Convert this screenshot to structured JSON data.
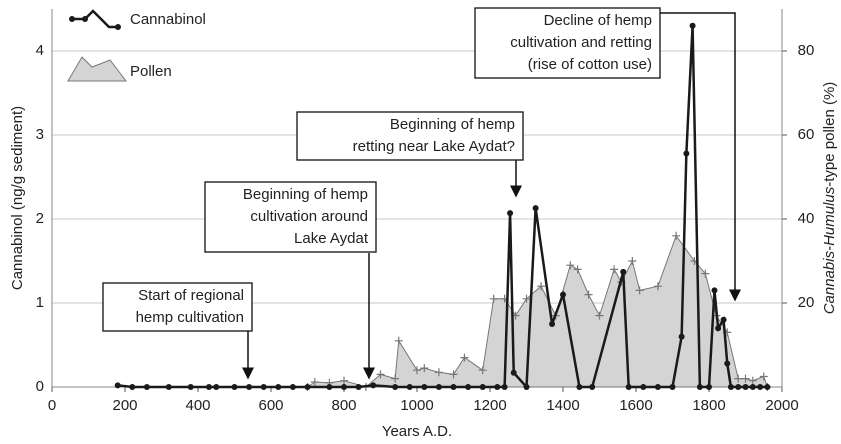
{
  "chart_data": {
    "type": "line",
    "x_label": "Years A.D.",
    "y_label": "Cannabinol (ng/g sediment)",
    "y2_label_parts": [
      "Cannabis-Humulus",
      "-type pollen (%)"
    ],
    "xlim": [
      0,
      2000
    ],
    "xticks": [
      0,
      200,
      400,
      600,
      800,
      1000,
      1200,
      1400,
      1600,
      1800,
      2000
    ],
    "ylim": [
      0,
      4.5
    ],
    "yticks": [
      0,
      1,
      2,
      3,
      4
    ],
    "y2lim": [
      0,
      90
    ],
    "y2ticks": [
      20,
      40,
      60,
      80
    ],
    "grid": true,
    "legend": "top-left",
    "series": [
      {
        "name": "Cannabinol",
        "color": "#1a1a1a",
        "x": [
          180,
          220,
          260,
          320,
          380,
          430,
          450,
          500,
          540,
          580,
          620,
          660,
          700,
          760,
          800,
          840,
          880,
          940,
          980,
          1020,
          1060,
          1100,
          1140,
          1180,
          1220,
          1240,
          1255,
          1265,
          1300,
          1325,
          1370,
          1400,
          1445,
          1480,
          1565,
          1580,
          1620,
          1660,
          1700,
          1725,
          1738,
          1755,
          1775,
          1800,
          1815,
          1825,
          1840,
          1850,
          1860,
          1880,
          1900,
          1920,
          1940,
          1960
        ],
        "values": [
          0.02,
          0,
          0,
          0,
          0,
          0,
          0,
          0,
          0,
          0,
          0,
          0,
          0,
          0,
          0,
          0,
          0.02,
          0,
          0,
          0,
          0,
          0,
          0,
          0,
          0,
          0,
          2.07,
          0.17,
          0,
          2.13,
          0.75,
          1.1,
          0,
          0,
          1.37,
          0,
          0,
          0,
          0,
          0.6,
          2.78,
          4.3,
          0,
          0,
          1.15,
          0.7,
          0.8,
          0.28,
          0,
          0,
          0,
          0,
          0,
          0
        ]
      },
      {
        "name": "Pollen",
        "color": "#d4d4d4",
        "axis": "y2",
        "type": "area",
        "x": [
          700,
          720,
          760,
          800,
          860,
          900,
          940,
          950,
          1000,
          1020,
          1060,
          1100,
          1130,
          1180,
          1210,
          1240,
          1270,
          1300,
          1340,
          1380,
          1420,
          1440,
          1470,
          1500,
          1540,
          1560,
          1590,
          1610,
          1660,
          1710,
          1760,
          1790,
          1820,
          1850,
          1880,
          1900,
          1920,
          1950,
          1960
        ],
        "values": [
          0,
          1.2,
          1,
          1.5,
          0,
          3,
          2,
          11,
          4,
          4.5,
          3.5,
          3,
          7,
          4,
          21,
          21,
          17,
          21,
          24,
          17,
          29,
          28,
          22,
          17,
          28,
          25,
          30,
          23,
          24,
          36,
          30,
          27,
          17,
          13,
          2,
          2,
          1.5,
          2.5,
          0
        ]
      }
    ],
    "annotations": [
      {
        "lines": [
          "Start of regional",
          "hemp cultivation"
        ]
      },
      {
        "lines": [
          "Beginning of hemp",
          "cultivation around",
          "Lake Aydat"
        ]
      },
      {
        "lines": [
          "Beginning of hemp",
          "retting near Lake Aydat?"
        ]
      },
      {
        "lines": [
          "Decline of hemp",
          "cultivation and retting",
          "(rise of cotton use)"
        ]
      }
    ]
  }
}
